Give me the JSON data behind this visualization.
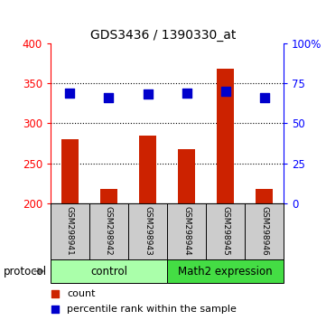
{
  "title": "GDS3436 / 1390330_at",
  "samples": [
    "GSM298941",
    "GSM298942",
    "GSM298943",
    "GSM298944",
    "GSM298945",
    "GSM298946"
  ],
  "count_values": [
    280,
    218,
    285,
    267,
    368,
    218
  ],
  "percentile_values": [
    69,
    66,
    68,
    69,
    70,
    66
  ],
  "ylim_left": [
    200,
    400
  ],
  "ylim_right": [
    0,
    100
  ],
  "yticks_left": [
    200,
    250,
    300,
    350,
    400
  ],
  "yticks_right": [
    0,
    25,
    50,
    75,
    100
  ],
  "yticklabels_right": [
    "0",
    "25",
    "50",
    "75",
    "100%"
  ],
  "bar_color": "#cc2200",
  "dot_color": "#0000cc",
  "control_group_size": 3,
  "treatment_group_size": 3,
  "control_label": "control",
  "treatment_label": "Math2 expression",
  "protocol_label": "protocol",
  "legend_count": "count",
  "legend_percentile": "percentile rank within the sample",
  "bar_width": 0.45,
  "dot_size": 45,
  "sample_bg_color": "#cccccc",
  "control_bg_color": "#aaffaa",
  "treatment_bg_color": "#44dd44",
  "gridline_y": [
    250,
    300,
    350
  ]
}
